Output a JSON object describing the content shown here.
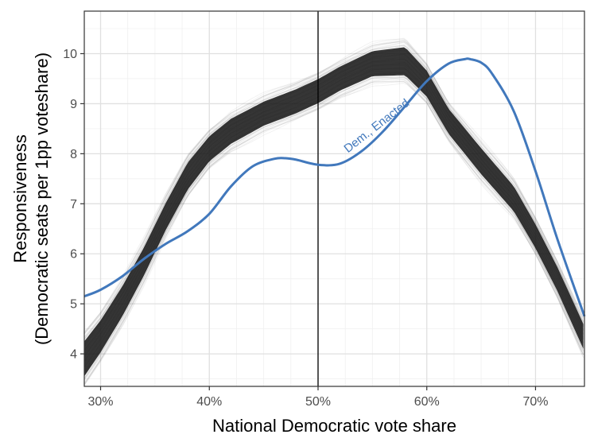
{
  "chart_data": {
    "type": "line",
    "xlabel": "National Democratic vote share",
    "ylabel_line1": "Responsiveness",
    "ylabel_line2": "(Democratic seats per 1pp voteshare)",
    "xlim": [
      0.285,
      0.745
    ],
    "ylim": [
      3.35,
      10.85
    ],
    "x_ticks": [
      {
        "value": 0.3,
        "label": "30%"
      },
      {
        "value": 0.4,
        "label": "40%"
      },
      {
        "value": 0.5,
        "label": "50%"
      },
      {
        "value": 0.6,
        "label": "60%"
      },
      {
        "value": 0.7,
        "label": "70%"
      }
    ],
    "y_ticks": [
      4,
      5,
      6,
      7,
      8,
      9,
      10
    ],
    "grid": true,
    "reference_line_x": 0.5,
    "simulation_band": {
      "color": "#1a1a1a",
      "x": [
        0.285,
        0.3,
        0.32,
        0.34,
        0.36,
        0.38,
        0.4,
        0.42,
        0.45,
        0.48,
        0.5,
        0.52,
        0.55,
        0.58,
        0.6,
        0.62,
        0.65,
        0.68,
        0.7,
        0.72,
        0.745
      ],
      "mean": [
        3.9,
        4.35,
        5.05,
        5.85,
        6.75,
        7.55,
        8.1,
        8.45,
        8.8,
        9.05,
        9.25,
        9.5,
        9.8,
        9.85,
        9.4,
        8.65,
        7.85,
        7.1,
        6.35,
        5.5,
        4.3
      ],
      "spread": [
        0.35,
        0.32,
        0.3,
        0.28,
        0.27,
        0.27,
        0.25,
        0.25,
        0.24,
        0.24,
        0.24,
        0.24,
        0.25,
        0.28,
        0.26,
        0.25,
        0.26,
        0.25,
        0.24,
        0.24,
        0.25
      ]
    },
    "series": [
      {
        "name": "Dem., Enacted",
        "color": "#4178bc",
        "x": [
          0.285,
          0.3,
          0.32,
          0.34,
          0.36,
          0.38,
          0.4,
          0.42,
          0.44,
          0.46,
          0.47,
          0.48,
          0.5,
          0.52,
          0.54,
          0.56,
          0.58,
          0.6,
          0.62,
          0.635,
          0.64,
          0.65,
          0.66,
          0.68,
          0.7,
          0.72,
          0.745
        ],
        "values": [
          5.15,
          5.28,
          5.55,
          5.9,
          6.2,
          6.45,
          6.8,
          7.35,
          7.75,
          7.9,
          7.91,
          7.88,
          7.78,
          7.8,
          8.05,
          8.45,
          8.95,
          9.45,
          9.8,
          9.89,
          9.89,
          9.82,
          9.6,
          8.85,
          7.65,
          6.3,
          4.75
        ]
      }
    ]
  }
}
